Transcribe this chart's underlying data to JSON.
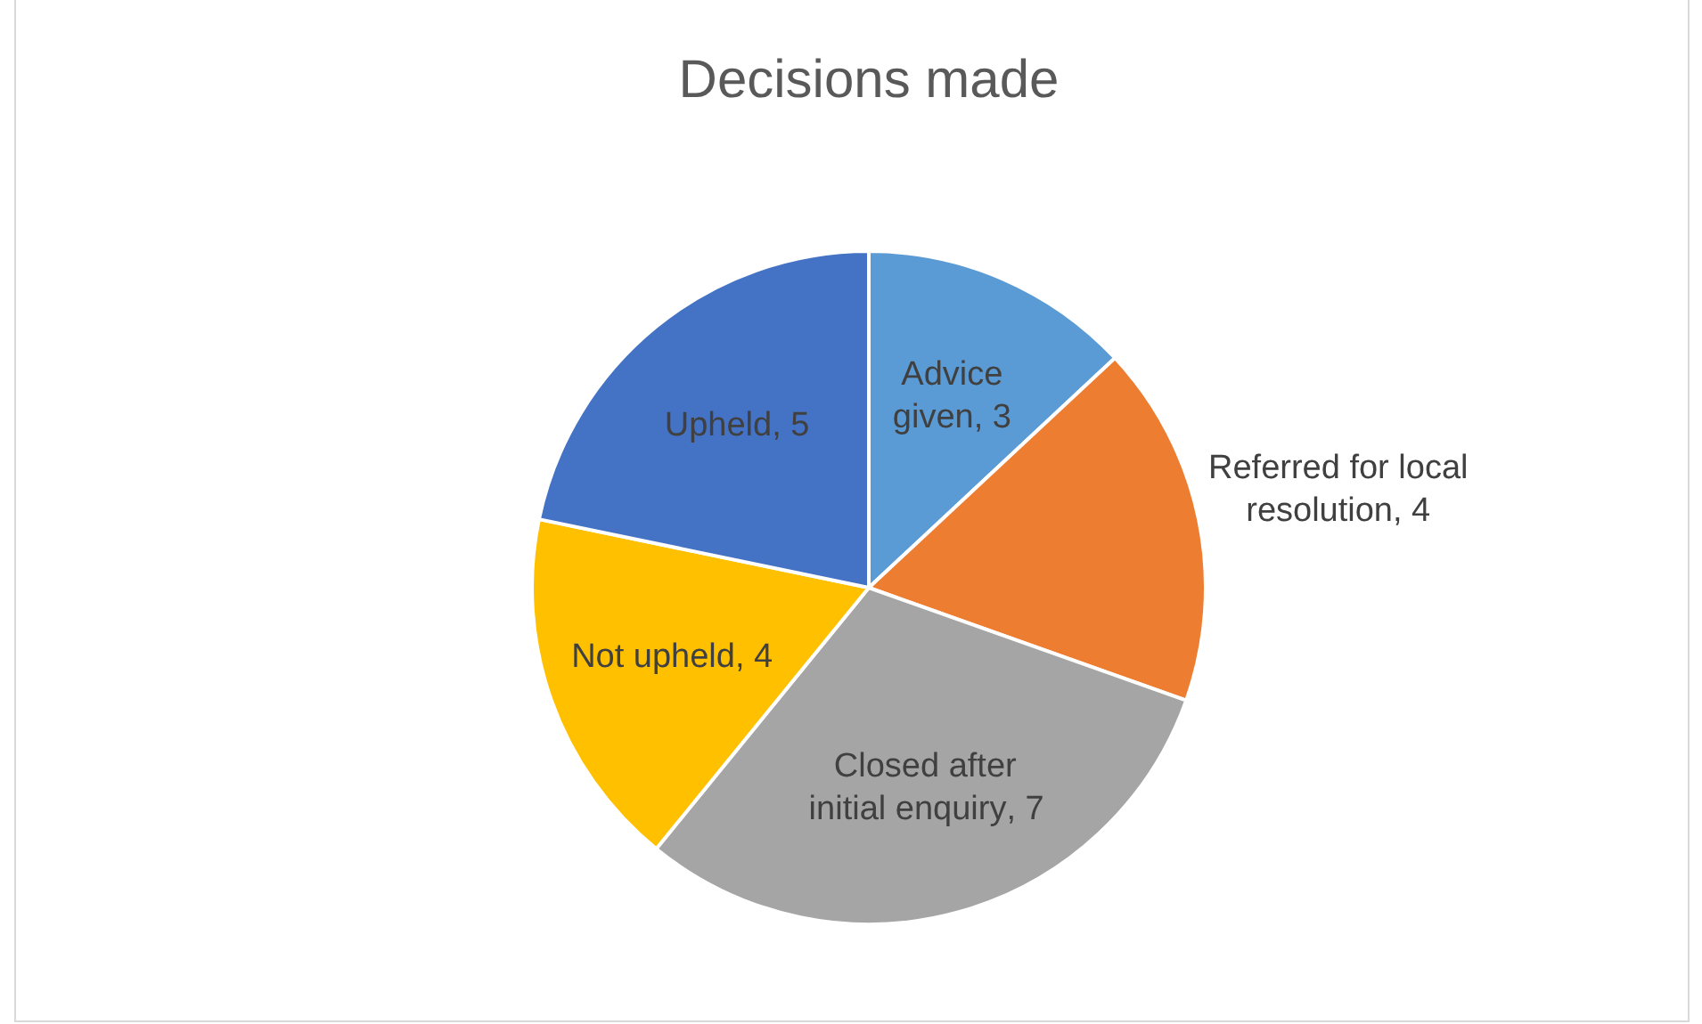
{
  "chart_data": {
    "type": "pie",
    "title": "Decisions made",
    "categories": [
      "Advice given",
      "Referred for local resolution",
      "Closed after initial enquiry",
      "Not upheld",
      "Upheld"
    ],
    "values": [
      3,
      4,
      7,
      4,
      5
    ],
    "colors": [
      "#5b9bd5",
      "#ed7d31",
      "#a5a5a5",
      "#ffc000",
      "#4472c4"
    ],
    "value_labels": [
      ", 3",
      ", 4",
      ", 7",
      ", 4",
      ", 5"
    ],
    "legend": false
  }
}
